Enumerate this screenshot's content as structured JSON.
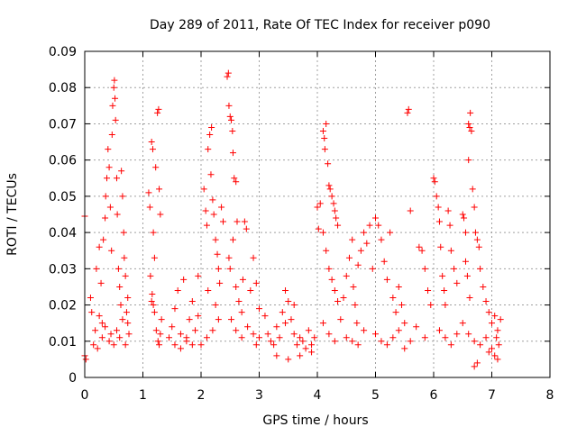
{
  "chart_data": {
    "type": "scatter",
    "title": "Day 289 of 2011, Rate Of TEC Index for receiver p090",
    "xlabel": "GPS time / hours",
    "ylabel": "ROTI / TECUs",
    "xlim": [
      0,
      8
    ],
    "ylim": [
      0,
      0.09
    ],
    "xticks": [
      0,
      1,
      2,
      3,
      4,
      5,
      6,
      7,
      8
    ],
    "yticks": [
      0,
      0.01,
      0.02,
      0.03,
      0.04,
      0.05,
      0.06,
      0.07,
      0.08,
      0.09
    ],
    "xtick_labels": [
      "0",
      "1",
      "2",
      "3",
      "4",
      "5",
      "6",
      "7",
      "8"
    ],
    "ytick_labels": [
      "0",
      "0.01",
      "0.02",
      "0.03",
      "0.04",
      "0.05",
      "0.06",
      "0.07",
      "0.08",
      "0.09"
    ],
    "grid": true,
    "marker": "+",
    "series": [
      {
        "name": "ROTI",
        "color": "#ff0000",
        "points": [
          [
            0.0,
            0.0445
          ],
          [
            0.0,
            0.006
          ],
          [
            0.02,
            0.005
          ],
          [
            0.1,
            0.022
          ],
          [
            0.12,
            0.018
          ],
          [
            0.15,
            0.009
          ],
          [
            0.18,
            0.013
          ],
          [
            0.2,
            0.03
          ],
          [
            0.22,
            0.008
          ],
          [
            0.25,
            0.036
          ],
          [
            0.28,
            0.026
          ],
          [
            0.3,
            0.015
          ],
          [
            0.32,
            0.038
          ],
          [
            0.35,
            0.044
          ],
          [
            0.36,
            0.05
          ],
          [
            0.38,
            0.055
          ],
          [
            0.4,
            0.063
          ],
          [
            0.42,
            0.058
          ],
          [
            0.44,
            0.047
          ],
          [
            0.46,
            0.035
          ],
          [
            0.47,
            0.067
          ],
          [
            0.48,
            0.075
          ],
          [
            0.5,
            0.08
          ],
          [
            0.51,
            0.082
          ],
          [
            0.52,
            0.077
          ],
          [
            0.53,
            0.071
          ],
          [
            0.55,
            0.055
          ],
          [
            0.56,
            0.045
          ],
          [
            0.58,
            0.03
          ],
          [
            0.6,
            0.025
          ],
          [
            0.62,
            0.02
          ],
          [
            0.63,
            0.057
          ],
          [
            0.65,
            0.05
          ],
          [
            0.67,
            0.04
          ],
          [
            0.68,
            0.033
          ],
          [
            0.7,
            0.028
          ],
          [
            0.72,
            0.018
          ],
          [
            0.74,
            0.015
          ],
          [
            0.76,
            0.012
          ],
          [
            0.42,
            0.01
          ],
          [
            0.45,
            0.012
          ],
          [
            0.5,
            0.009
          ],
          [
            0.55,
            0.013
          ],
          [
            0.6,
            0.011
          ],
          [
            0.7,
            0.009
          ],
          [
            0.3,
            0.011
          ],
          [
            0.35,
            0.014
          ],
          [
            0.25,
            0.017
          ],
          [
            0.65,
            0.016
          ],
          [
            0.74,
            0.022
          ],
          [
            1.1,
            0.051
          ],
          [
            1.12,
            0.047
          ],
          [
            1.15,
            0.065
          ],
          [
            1.17,
            0.063
          ],
          [
            1.18,
            0.04
          ],
          [
            1.2,
            0.033
          ],
          [
            1.22,
            0.058
          ],
          [
            1.25,
            0.073
          ],
          [
            1.27,
            0.074
          ],
          [
            1.28,
            0.052
          ],
          [
            1.3,
            0.045
          ],
          [
            1.13,
            0.028
          ],
          [
            1.16,
            0.023
          ],
          [
            1.18,
            0.02
          ],
          [
            1.2,
            0.018
          ],
          [
            1.23,
            0.013
          ],
          [
            1.26,
            0.01
          ],
          [
            1.28,
            0.009
          ],
          [
            1.3,
            0.012
          ],
          [
            1.32,
            0.016
          ],
          [
            1.15,
            0.021
          ],
          [
            1.5,
            0.014
          ],
          [
            1.55,
            0.019
          ],
          [
            1.6,
            0.024
          ],
          [
            1.65,
            0.012
          ],
          [
            1.7,
            0.027
          ],
          [
            1.75,
            0.011
          ],
          [
            1.8,
            0.016
          ],
          [
            1.85,
            0.021
          ],
          [
            1.9,
            0.013
          ],
          [
            1.95,
            0.028
          ],
          [
            2.0,
            0.009
          ],
          [
            1.55,
            0.009
          ],
          [
            1.65,
            0.008
          ],
          [
            1.75,
            0.01
          ],
          [
            1.85,
            0.009
          ],
          [
            1.45,
            0.011
          ],
          [
            1.95,
            0.017
          ],
          [
            2.05,
            0.052
          ],
          [
            2.08,
            0.046
          ],
          [
            2.12,
            0.063
          ],
          [
            2.15,
            0.067
          ],
          [
            2.17,
            0.056
          ],
          [
            2.2,
            0.049
          ],
          [
            2.22,
            0.045
          ],
          [
            2.25,
            0.038
          ],
          [
            2.28,
            0.034
          ],
          [
            2.3,
            0.03
          ],
          [
            2.32,
            0.026
          ],
          [
            2.18,
            0.069
          ],
          [
            2.1,
            0.042
          ],
          [
            2.35,
            0.047
          ],
          [
            2.38,
            0.043
          ],
          [
            2.12,
            0.024
          ],
          [
            2.25,
            0.02
          ],
          [
            2.3,
            0.016
          ],
          [
            2.2,
            0.013
          ],
          [
            2.1,
            0.011
          ],
          [
            2.45,
            0.083
          ],
          [
            2.47,
            0.084
          ],
          [
            2.48,
            0.075
          ],
          [
            2.5,
            0.072
          ],
          [
            2.52,
            0.071
          ],
          [
            2.54,
            0.068
          ],
          [
            2.55,
            0.062
          ],
          [
            2.57,
            0.055
          ],
          [
            2.6,
            0.054
          ],
          [
            2.62,
            0.043
          ],
          [
            2.55,
            0.038
          ],
          [
            2.48,
            0.033
          ],
          [
            2.5,
            0.03
          ],
          [
            2.6,
            0.025
          ],
          [
            2.65,
            0.021
          ],
          [
            2.7,
            0.018
          ],
          [
            2.75,
            0.043
          ],
          [
            2.78,
            0.041
          ],
          [
            2.72,
            0.027
          ],
          [
            2.52,
            0.016
          ],
          [
            2.6,
            0.013
          ],
          [
            2.7,
            0.011
          ],
          [
            2.8,
            0.014
          ],
          [
            2.85,
            0.024
          ],
          [
            2.9,
            0.033
          ],
          [
            2.95,
            0.026
          ],
          [
            3.0,
            0.019
          ],
          [
            2.9,
            0.012
          ],
          [
            2.95,
            0.009
          ],
          [
            3.0,
            0.011
          ],
          [
            3.1,
            0.017
          ],
          [
            3.15,
            0.012
          ],
          [
            3.2,
            0.01
          ],
          [
            3.25,
            0.009
          ],
          [
            3.3,
            0.014
          ],
          [
            3.35,
            0.011
          ],
          [
            3.4,
            0.018
          ],
          [
            3.45,
            0.024
          ],
          [
            3.5,
            0.021
          ],
          [
            3.55,
            0.016
          ],
          [
            3.6,
            0.012
          ],
          [
            3.65,
            0.009
          ],
          [
            3.7,
            0.011
          ],
          [
            3.75,
            0.01
          ],
          [
            3.8,
            0.008
          ],
          [
            3.85,
            0.013
          ],
          [
            3.9,
            0.009
          ],
          [
            3.95,
            0.011
          ],
          [
            3.3,
            0.006
          ],
          [
            3.5,
            0.005
          ],
          [
            3.7,
            0.006
          ],
          [
            3.9,
            0.007
          ],
          [
            3.6,
            0.02
          ],
          [
            3.45,
            0.015
          ],
          [
            4.0,
            0.047
          ],
          [
            4.05,
            0.048
          ],
          [
            4.02,
            0.041
          ],
          [
            4.1,
            0.068
          ],
          [
            4.12,
            0.066
          ],
          [
            4.15,
            0.07
          ],
          [
            4.13,
            0.063
          ],
          [
            4.18,
            0.059
          ],
          [
            4.2,
            0.053
          ],
          [
            4.22,
            0.052
          ],
          [
            4.25,
            0.05
          ],
          [
            4.28,
            0.048
          ],
          [
            4.3,
            0.046
          ],
          [
            4.32,
            0.044
          ],
          [
            4.35,
            0.042
          ],
          [
            4.1,
            0.04
          ],
          [
            4.15,
            0.035
          ],
          [
            4.2,
            0.03
          ],
          [
            4.25,
            0.027
          ],
          [
            4.3,
            0.024
          ],
          [
            4.35,
            0.021
          ],
          [
            4.1,
            0.015
          ],
          [
            4.2,
            0.012
          ],
          [
            4.3,
            0.01
          ],
          [
            4.4,
            0.016
          ],
          [
            4.45,
            0.022
          ],
          [
            4.5,
            0.028
          ],
          [
            4.55,
            0.033
          ],
          [
            4.6,
            0.038
          ],
          [
            4.62,
            0.025
          ],
          [
            4.65,
            0.02
          ],
          [
            4.68,
            0.015
          ],
          [
            4.7,
            0.031
          ],
          [
            4.75,
            0.035
          ],
          [
            4.8,
            0.04
          ],
          [
            4.85,
            0.037
          ],
          [
            4.9,
            0.042
          ],
          [
            4.95,
            0.03
          ],
          [
            4.5,
            0.011
          ],
          [
            4.6,
            0.01
          ],
          [
            4.7,
            0.009
          ],
          [
            4.8,
            0.013
          ],
          [
            5.0,
            0.044
          ],
          [
            5.05,
            0.042
          ],
          [
            5.1,
            0.038
          ],
          [
            5.15,
            0.032
          ],
          [
            5.2,
            0.027
          ],
          [
            5.25,
            0.04
          ],
          [
            5.3,
            0.022
          ],
          [
            5.35,
            0.018
          ],
          [
            5.4,
            0.025
          ],
          [
            5.45,
            0.02
          ],
          [
            5.5,
            0.015
          ],
          [
            5.55,
            0.073
          ],
          [
            5.57,
            0.074
          ],
          [
            5.6,
            0.046
          ],
          [
            5.0,
            0.012
          ],
          [
            5.1,
            0.01
          ],
          [
            5.2,
            0.009
          ],
          [
            5.3,
            0.011
          ],
          [
            5.4,
            0.013
          ],
          [
            5.5,
            0.008
          ],
          [
            5.6,
            0.01
          ],
          [
            5.7,
            0.014
          ],
          [
            5.75,
            0.036
          ],
          [
            5.8,
            0.035
          ],
          [
            5.85,
            0.03
          ],
          [
            5.9,
            0.024
          ],
          [
            5.95,
            0.02
          ],
          [
            5.85,
            0.011
          ],
          [
            6.0,
            0.055
          ],
          [
            6.02,
            0.054
          ],
          [
            6.05,
            0.05
          ],
          [
            6.08,
            0.047
          ],
          [
            6.1,
            0.043
          ],
          [
            6.12,
            0.036
          ],
          [
            6.15,
            0.028
          ],
          [
            6.18,
            0.024
          ],
          [
            6.2,
            0.02
          ],
          [
            6.25,
            0.046
          ],
          [
            6.28,
            0.042
          ],
          [
            6.3,
            0.035
          ],
          [
            6.35,
            0.03
          ],
          [
            6.4,
            0.026
          ],
          [
            6.1,
            0.013
          ],
          [
            6.2,
            0.011
          ],
          [
            6.3,
            0.009
          ],
          [
            6.4,
            0.012
          ],
          [
            6.5,
            0.045
          ],
          [
            6.52,
            0.044
          ],
          [
            6.55,
            0.04
          ],
          [
            6.6,
            0.07
          ],
          [
            6.62,
            0.069
          ],
          [
            6.63,
            0.073
          ],
          [
            6.65,
            0.068
          ],
          [
            6.6,
            0.06
          ],
          [
            6.67,
            0.052
          ],
          [
            6.7,
            0.047
          ],
          [
            6.72,
            0.04
          ],
          [
            6.75,
            0.038
          ],
          [
            6.78,
            0.036
          ],
          [
            6.8,
            0.03
          ],
          [
            6.85,
            0.025
          ],
          [
            6.9,
            0.021
          ],
          [
            6.95,
            0.018
          ],
          [
            6.55,
            0.032
          ],
          [
            6.58,
            0.028
          ],
          [
            6.62,
            0.022
          ],
          [
            6.5,
            0.015
          ],
          [
            6.6,
            0.012
          ],
          [
            6.7,
            0.01
          ],
          [
            6.8,
            0.009
          ],
          [
            6.9,
            0.011
          ],
          [
            7.0,
            0.015
          ],
          [
            7.05,
            0.017
          ],
          [
            7.1,
            0.013
          ],
          [
            7.0,
            0.008
          ],
          [
            7.05,
            0.006
          ],
          [
            7.1,
            0.005
          ],
          [
            7.15,
            0.016
          ],
          [
            7.12,
            0.009
          ],
          [
            7.08,
            0.011
          ],
          [
            6.95,
            0.007
          ],
          [
            6.7,
            0.003
          ],
          [
            6.75,
            0.004
          ]
        ]
      }
    ]
  }
}
